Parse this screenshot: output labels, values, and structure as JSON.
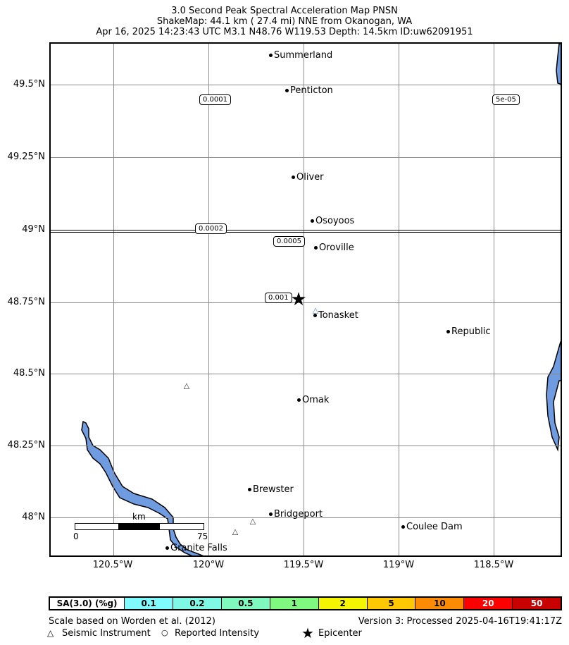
{
  "title": {
    "line1": "3.0 Second Peak Spectral Acceleration Map PNSN",
    "line2": "ShakeMap: 44.1 km (  27.4 mi) NNE from Okanogan, WA",
    "line3": "Apr 16, 2025 14:23:43 UTC M3.1 N48.76 W119.53 Depth: 14.5km ID:uw62091951"
  },
  "map": {
    "lat_labels": [
      "49.5°N",
      "49.25°N",
      "49°N",
      "48.75°N",
      "48.5°N",
      "48.25°N",
      "48°N"
    ],
    "lon_labels": [
      "120.5°W",
      "120°W",
      "119.5°W",
      "119°W",
      "118.5°W"
    ],
    "cities": [
      {
        "name": "Summerland"
      },
      {
        "name": "Penticton"
      },
      {
        "name": "Oliver"
      },
      {
        "name": "Osoyoos"
      },
      {
        "name": "Oroville"
      },
      {
        "name": "Tonasket"
      },
      {
        "name": "Republic"
      },
      {
        "name": "Omak"
      },
      {
        "name": "Brewster"
      },
      {
        "name": "Bridgeport"
      },
      {
        "name": "Coulee Dam"
      },
      {
        "name": "Granite Falls"
      }
    ],
    "contour_labels": [
      "0.0001",
      "5e-05",
      "0.0002",
      "0.0005",
      "0.001"
    ],
    "epicenter_symbol": "★",
    "station_symbol": "△",
    "scalebar": {
      "unit": "km",
      "start": "0",
      "end": "75"
    },
    "water_color": "#6f9be0"
  },
  "legend": {
    "header": "SA(3.0) (%g)",
    "cells": [
      {
        "label": "0.1",
        "color": "#7ffaff"
      },
      {
        "label": "0.2",
        "color": "#7ff9e6"
      },
      {
        "label": "0.5",
        "color": "#7ff9bd"
      },
      {
        "label": "1",
        "color": "#7ff97f"
      },
      {
        "label": "2",
        "color": "#f5f500"
      },
      {
        "label": "5",
        "color": "#ffc800"
      },
      {
        "label": "10",
        "color": "#ff8c00"
      },
      {
        "label": "20",
        "color": "#ff0000"
      },
      {
        "label": "50",
        "color": "#c80000"
      }
    ]
  },
  "footer": {
    "scale_note": "Scale based on Worden et al. (2012)",
    "version": "Version 3: Processed 2025-04-16T19:41:17Z",
    "seismic_instrument": "Seismic Instrument",
    "reported_intensity": "Reported Intensity",
    "epicenter": "Epicenter",
    "triangle_symbol": "△",
    "circle_symbol": "○",
    "star_symbol": "★"
  }
}
